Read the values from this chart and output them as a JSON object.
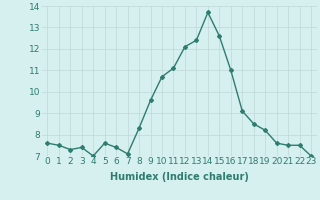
{
  "x": [
    0,
    1,
    2,
    3,
    4,
    5,
    6,
    7,
    8,
    9,
    10,
    11,
    12,
    13,
    14,
    15,
    16,
    17,
    18,
    19,
    20,
    21,
    22,
    23
  ],
  "y": [
    7.6,
    7.5,
    7.3,
    7.4,
    7.0,
    7.6,
    7.4,
    7.1,
    8.3,
    9.6,
    10.7,
    11.1,
    12.1,
    12.4,
    13.7,
    12.6,
    11.0,
    9.1,
    8.5,
    8.2,
    7.6,
    7.5,
    7.5,
    7.0
  ],
  "line_color": "#2e7d6e",
  "bg_color": "#d6efef",
  "grid_color": "#c0d8d8",
  "xlabel": "Humidex (Indice chaleur)",
  "ylim": [
    7,
    14
  ],
  "xlim": [
    -0.5,
    23.5
  ],
  "yticks": [
    7,
    8,
    9,
    10,
    11,
    12,
    13,
    14
  ],
  "xticks": [
    0,
    1,
    2,
    3,
    4,
    5,
    6,
    7,
    8,
    9,
    10,
    11,
    12,
    13,
    14,
    15,
    16,
    17,
    18,
    19,
    20,
    21,
    22,
    23
  ],
  "xlabel_fontsize": 7,
  "tick_fontsize": 6.5,
  "marker": "D",
  "marker_size": 2.0,
  "linewidth": 1.0
}
